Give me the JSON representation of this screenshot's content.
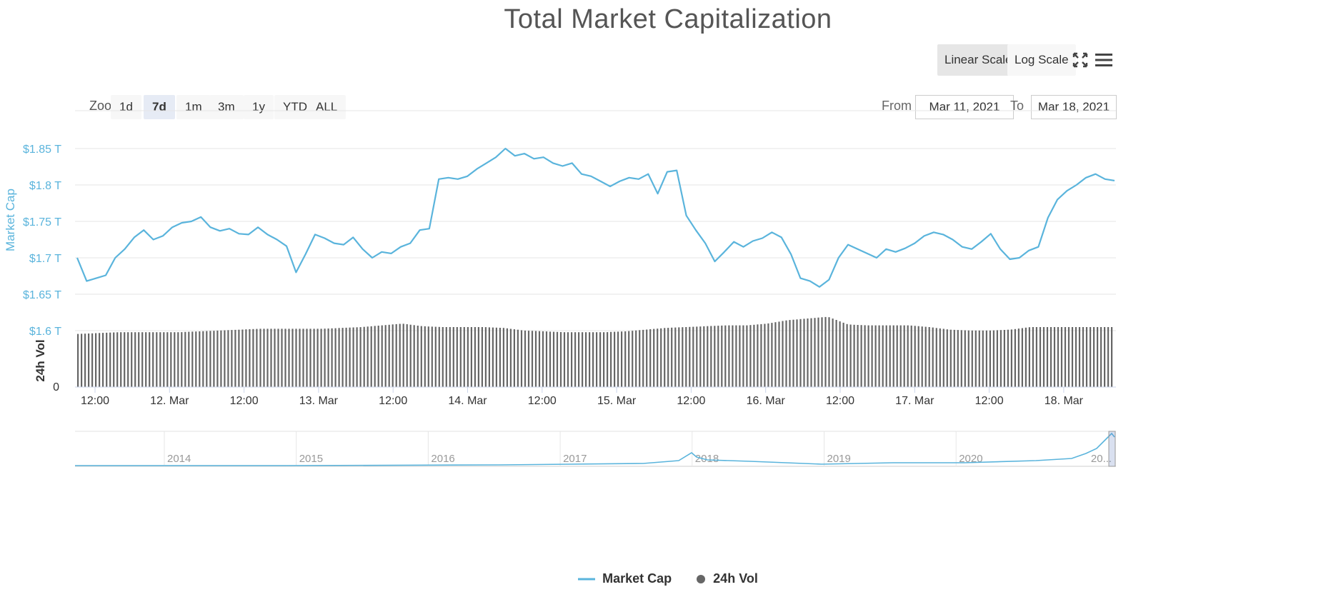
{
  "title": "Total Market Capitalization",
  "toolbar": {
    "linear_label": "Linear Scale",
    "log_label": "Log Scale",
    "fullscreen_icon": "fullscreen-icon",
    "menu_icon": "hamburger-menu-icon"
  },
  "zoom": {
    "label": "Zoom",
    "buttons": [
      "1d",
      "7d",
      "1m",
      "3m",
      "1y",
      "YTD",
      "ALL"
    ],
    "active": "7d"
  },
  "range": {
    "from_label": "From",
    "from_value": "Mar 11, 2021",
    "to_label": "To",
    "to_value": "Mar 18, 2021"
  },
  "colors": {
    "market_cap": "#5ab4dc",
    "volume": "#666666",
    "axis_text_left": "#5ab4dc",
    "grid": "#e6e6e6"
  },
  "chart_data": {
    "type": "line",
    "y_axis_label": "Market Cap",
    "y_ticks": [
      "$1.85 T",
      "$1.8 T",
      "$1.75 T",
      "$1.7 T",
      "$1.65 T",
      "$1.6 T"
    ],
    "y_tick_values": [
      1.85,
      1.8,
      1.75,
      1.7,
      1.65,
      1.6
    ],
    "ylim": [
      1.6,
      1.85
    ],
    "x_ticks": [
      "12:00",
      "12. Mar",
      "12:00",
      "13. Mar",
      "12:00",
      "14. Mar",
      "12:00",
      "15. Mar",
      "12:00",
      "16. Mar",
      "12:00",
      "17. Mar",
      "12:00",
      "18. Mar"
    ],
    "series": [
      {
        "name": "Market Cap",
        "unit": "T USD",
        "values": [
          1.7,
          1.668,
          1.672,
          1.676,
          1.7,
          1.712,
          1.728,
          1.738,
          1.725,
          1.73,
          1.742,
          1.748,
          1.75,
          1.756,
          1.742,
          1.737,
          1.74,
          1.733,
          1.732,
          1.742,
          1.732,
          1.725,
          1.716,
          1.68,
          1.705,
          1.732,
          1.727,
          1.72,
          1.718,
          1.728,
          1.712,
          1.7,
          1.708,
          1.706,
          1.715,
          1.72,
          1.738,
          1.74,
          1.808,
          1.81,
          1.808,
          1.812,
          1.822,
          1.83,
          1.838,
          1.85,
          1.84,
          1.843,
          1.836,
          1.838,
          1.83,
          1.826,
          1.83,
          1.815,
          1.812,
          1.805,
          1.798,
          1.805,
          1.81,
          1.808,
          1.815,
          1.788,
          1.818,
          1.82,
          1.758,
          1.738,
          1.72,
          1.695,
          1.708,
          1.722,
          1.715,
          1.723,
          1.727,
          1.735,
          1.728,
          1.705,
          1.672,
          1.668,
          1.66,
          1.67,
          1.7,
          1.718,
          1.712,
          1.706,
          1.7,
          1.712,
          1.708,
          1.713,
          1.72,
          1.73,
          1.735,
          1.732,
          1.725,
          1.715,
          1.712,
          1.722,
          1.733,
          1.712,
          1.698,
          1.7,
          1.71,
          1.715,
          1.755,
          1.78,
          1.792,
          1.8,
          1.81,
          1.815,
          1.808,
          1.806
        ]
      },
      {
        "name": "24h Vol",
        "y_axis_label": "24h Vol",
        "y_ticks": [
          "0"
        ],
        "relative_values": [
          0.62,
          0.63,
          0.64,
          0.64,
          0.64,
          0.64,
          0.65,
          0.66,
          0.67,
          0.68,
          0.68,
          0.68,
          0.68,
          0.69,
          0.7,
          0.72,
          0.74,
          0.71,
          0.7,
          0.7,
          0.7,
          0.69,
          0.66,
          0.65,
          0.64,
          0.64,
          0.64,
          0.65,
          0.67,
          0.69,
          0.7,
          0.71,
          0.72,
          0.72,
          0.74,
          0.78,
          0.8,
          0.82,
          0.73,
          0.72,
          0.72,
          0.72,
          0.7,
          0.67,
          0.66,
          0.66,
          0.67,
          0.7,
          0.7,
          0.7,
          0.7,
          0.7
        ]
      }
    ],
    "navigator": {
      "labels": [
        "2014",
        "2015",
        "2016",
        "2017",
        "2018",
        "2019",
        "2020",
        "20..."
      ]
    },
    "legend": [
      "Market Cap",
      "24h Vol"
    ]
  }
}
